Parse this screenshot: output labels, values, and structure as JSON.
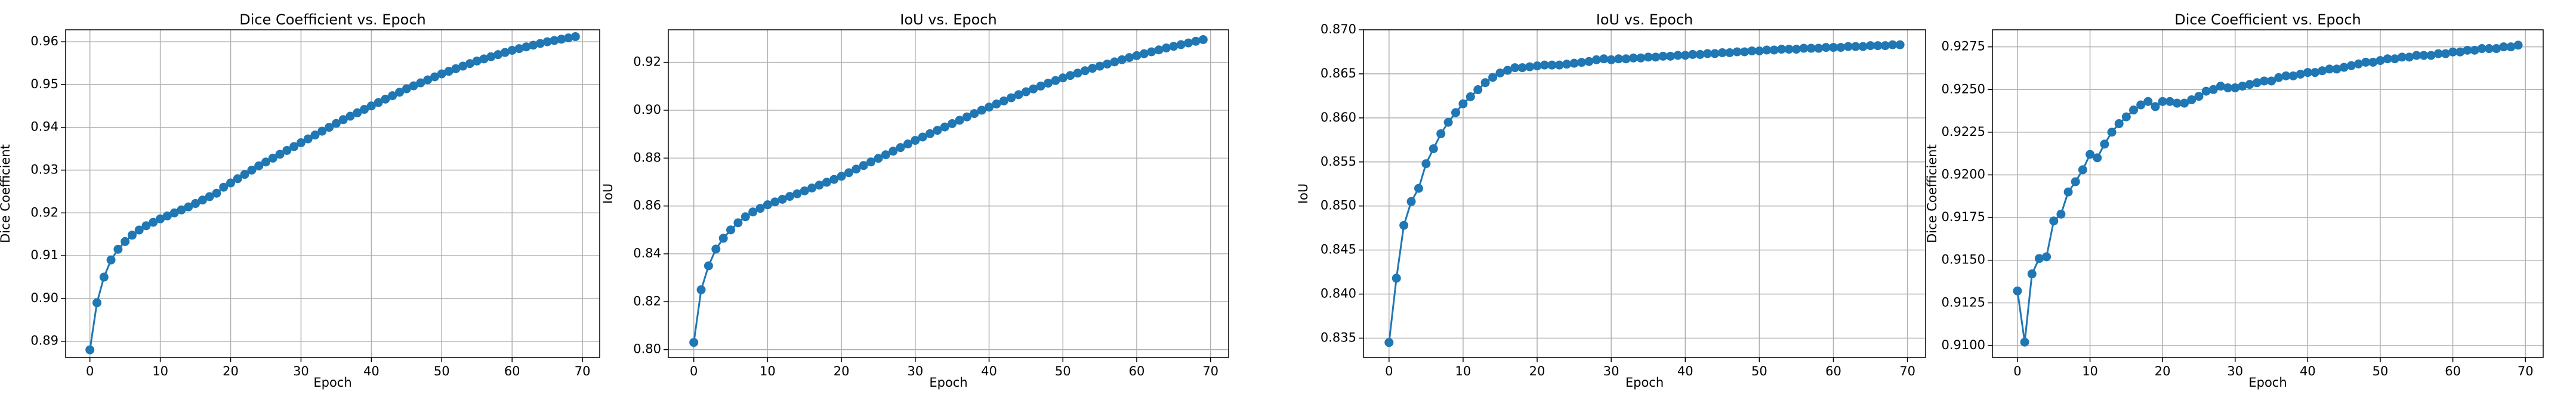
{
  "chart_data": [
    {
      "type": "line",
      "title": "Dice Coefficient vs. Epoch",
      "xlabel": "Epoch",
      "ylabel": "Dice Coefficient",
      "grid": true,
      "x": [
        0,
        1,
        2,
        3,
        4,
        5,
        6,
        7,
        8,
        9,
        10,
        11,
        12,
        13,
        14,
        15,
        16,
        17,
        18,
        19,
        20,
        21,
        22,
        23,
        24,
        25,
        26,
        27,
        28,
        29,
        30,
        31,
        32,
        33,
        34,
        35,
        36,
        37,
        38,
        39,
        40,
        41,
        42,
        43,
        44,
        45,
        46,
        47,
        48,
        49,
        50,
        51,
        52,
        53,
        54,
        55,
        56,
        57,
        58,
        59,
        60,
        61,
        62,
        63,
        64,
        65,
        66,
        67,
        68,
        69
      ],
      "series": [
        {
          "color": "#1f77b4",
          "values": [
            0.888,
            0.899,
            0.905,
            0.909,
            0.9115,
            0.9133,
            0.9148,
            0.916,
            0.917,
            0.9178,
            0.9186,
            0.9193,
            0.92,
            0.9207,
            0.9214,
            0.9222,
            0.923,
            0.9238,
            0.9246,
            0.926,
            0.927,
            0.928,
            0.929,
            0.93,
            0.931,
            0.9319,
            0.9328,
            0.9337,
            0.9346,
            0.9355,
            0.9364,
            0.9373,
            0.9382,
            0.9391,
            0.94,
            0.9409,
            0.9418,
            0.9426,
            0.9434,
            0.9442,
            0.945,
            0.9458,
            0.9466,
            0.9474,
            0.9482,
            0.949,
            0.9497,
            0.9504,
            0.9511,
            0.9518,
            0.9525,
            0.9531,
            0.9537,
            0.9543,
            0.9549,
            0.9555,
            0.956,
            0.9565,
            0.957,
            0.9575,
            0.958,
            0.9584,
            0.9588,
            0.9592,
            0.9596,
            0.96,
            0.9603,
            0.9606,
            0.9609,
            0.9612
          ]
        }
      ],
      "xlim": [
        -3.45,
        72.45
      ],
      "xticks": [
        0,
        10,
        20,
        30,
        40,
        50,
        60,
        70
      ],
      "ylim": [
        0.8862,
        0.9628
      ],
      "yticks": [
        0.89,
        {
          "value": 0.9,
          "label": "0.90"
        },
        0.91,
        0.92,
        0.93,
        0.94,
        0.95,
        0.96
      ]
    },
    {
      "type": "line",
      "title": "IoU vs. Epoch",
      "xlabel": "Epoch",
      "ylabel": "IoU",
      "grid": true,
      "x": [
        0,
        1,
        2,
        3,
        4,
        5,
        6,
        7,
        8,
        9,
        10,
        11,
        12,
        13,
        14,
        15,
        16,
        17,
        18,
        19,
        20,
        21,
        22,
        23,
        24,
        25,
        26,
        27,
        28,
        29,
        30,
        31,
        32,
        33,
        34,
        35,
        36,
        37,
        38,
        39,
        40,
        41,
        42,
        43,
        44,
        45,
        46,
        47,
        48,
        49,
        50,
        51,
        52,
        53,
        54,
        55,
        56,
        57,
        58,
        59,
        60,
        61,
        62,
        63,
        64,
        65,
        66,
        67,
        68,
        69
      ],
      "series": [
        {
          "color": "#1f77b4",
          "values": [
            0.803,
            0.825,
            0.835,
            0.842,
            0.8465,
            0.85,
            0.853,
            0.8555,
            0.8575,
            0.859,
            0.8605,
            0.8617,
            0.8628,
            0.864,
            0.8651,
            0.8663,
            0.8675,
            0.8687,
            0.8699,
            0.8711,
            0.8724,
            0.8739,
            0.8754,
            0.8769,
            0.8784,
            0.8799,
            0.8814,
            0.8829,
            0.8844,
            0.8859,
            0.8874,
            0.8888,
            0.8902,
            0.8916,
            0.893,
            0.8944,
            0.8958,
            0.8972,
            0.8986,
            0.9,
            0.9013,
            0.9026,
            0.9039,
            0.9052,
            0.9065,
            0.9077,
            0.9089,
            0.9101,
            0.9113,
            0.9124,
            0.9135,
            0.9145,
            0.9155,
            0.9165,
            0.9175,
            0.9184,
            0.9193,
            0.9202,
            0.9211,
            0.922,
            0.9228,
            0.9236,
            0.9244,
            0.9252,
            0.926,
            0.9267,
            0.9274,
            0.9281,
            0.9288,
            0.9295
          ]
        }
      ],
      "xlim": [
        -3.45,
        72.45
      ],
      "xticks": [
        0,
        10,
        20,
        30,
        40,
        50,
        60,
        70
      ],
      "ylim": [
        0.7967,
        0.9336
      ],
      "yticks": [
        {
          "value": 0.8,
          "label": "0.80"
        },
        0.82,
        0.84,
        0.86,
        0.88,
        {
          "value": 0.9,
          "label": "0.90"
        },
        0.92
      ]
    },
    {
      "type": "line",
      "title": "IoU vs. Epoch",
      "xlabel": "Epoch",
      "ylabel": "IoU",
      "grid": true,
      "x": [
        0,
        1,
        2,
        3,
        4,
        5,
        6,
        7,
        8,
        9,
        10,
        11,
        12,
        13,
        14,
        15,
        16,
        17,
        18,
        19,
        20,
        21,
        22,
        23,
        24,
        25,
        26,
        27,
        28,
        29,
        30,
        31,
        32,
        33,
        34,
        35,
        36,
        37,
        38,
        39,
        40,
        41,
        42,
        43,
        44,
        45,
        46,
        47,
        48,
        49,
        50,
        51,
        52,
        53,
        54,
        55,
        56,
        57,
        58,
        59,
        60,
        61,
        62,
        63,
        64,
        65,
        66,
        67,
        68,
        69
      ],
      "series": [
        {
          "color": "#1f77b4",
          "values": [
            0.8345,
            0.8418,
            0.8478,
            0.8505,
            0.852,
            0.8548,
            0.8565,
            0.8582,
            0.8595,
            0.8606,
            0.8616,
            0.8624,
            0.8632,
            0.864,
            0.8646,
            0.8651,
            0.8654,
            0.8657,
            0.8657,
            0.8658,
            0.8659,
            0.866,
            0.866,
            0.866,
            0.8661,
            0.8662,
            0.8663,
            0.8664,
            0.8666,
            0.8667,
            0.8666,
            0.8667,
            0.8667,
            0.8668,
            0.8668,
            0.8669,
            0.8669,
            0.867,
            0.867,
            0.8671,
            0.8671,
            0.8672,
            0.8672,
            0.8673,
            0.8673,
            0.8674,
            0.8674,
            0.8675,
            0.8675,
            0.8676,
            0.8676,
            0.8677,
            0.8677,
            0.8678,
            0.8678,
            0.8678,
            0.8679,
            0.8679,
            0.8679,
            0.868,
            0.868,
            0.868,
            0.8681,
            0.8681,
            0.8681,
            0.8682,
            0.8682,
            0.8682,
            0.8683,
            0.8683
          ]
        }
      ],
      "xlim": [
        -3.45,
        72.45
      ],
      "xticks": [
        0,
        10,
        20,
        30,
        40,
        50,
        60,
        70
      ],
      "ylim": [
        0.8328,
        0.87
      ],
      "yticks": [
        0.835,
        {
          "value": 0.84,
          "label": "0.840"
        },
        0.845,
        {
          "value": 0.85,
          "label": "0.850"
        },
        0.855,
        {
          "value": 0.86,
          "label": "0.860"
        },
        0.865,
        {
          "value": 0.87,
          "label": "0.870"
        }
      ]
    },
    {
      "type": "line",
      "title": "Dice Coefficient vs. Epoch",
      "xlabel": "Epoch",
      "ylabel": "Dice Coefficient",
      "grid": true,
      "x": [
        0,
        1,
        2,
        3,
        4,
        5,
        6,
        7,
        8,
        9,
        10,
        11,
        12,
        13,
        14,
        15,
        16,
        17,
        18,
        19,
        20,
        21,
        22,
        23,
        24,
        25,
        26,
        27,
        28,
        29,
        30,
        31,
        32,
        33,
        34,
        35,
        36,
        37,
        38,
        39,
        40,
        41,
        42,
        43,
        44,
        45,
        46,
        47,
        48,
        49,
        50,
        51,
        52,
        53,
        54,
        55,
        56,
        57,
        58,
        59,
        60,
        61,
        62,
        63,
        64,
        65,
        66,
        67,
        68,
        69
      ],
      "series": [
        {
          "color": "#1f77b4",
          "values": [
            0.9132,
            0.9102,
            0.9142,
            0.9151,
            0.9152,
            0.9173,
            0.9177,
            0.919,
            0.9196,
            0.9203,
            0.9212,
            0.921,
            0.9218,
            0.9225,
            0.923,
            0.9234,
            0.9238,
            0.9241,
            0.9243,
            0.924,
            0.9243,
            0.9243,
            0.9242,
            0.9242,
            0.9244,
            0.9246,
            0.9249,
            0.925,
            0.9252,
            0.9251,
            0.9251,
            0.9252,
            0.9253,
            0.9254,
            0.9255,
            0.9255,
            0.9257,
            0.9258,
            0.9258,
            0.9259,
            0.926,
            0.926,
            0.9261,
            0.9262,
            0.9262,
            0.9263,
            0.9264,
            0.9265,
            0.9266,
            0.9266,
            0.9267,
            0.9268,
            0.9268,
            0.9269,
            0.9269,
            0.927,
            0.927,
            0.927,
            0.9271,
            0.9271,
            0.9272,
            0.9272,
            0.9273,
            0.9273,
            0.9274,
            0.9274,
            0.9274,
            0.9275,
            0.9275,
            0.9276
          ]
        }
      ],
      "xlim": [
        -3.45,
        72.45
      ],
      "xticks": [
        0,
        10,
        20,
        30,
        40,
        50,
        60,
        70
      ],
      "ylim": [
        0.9093,
        0.9285
      ],
      "yticks": [
        {
          "value": 0.91,
          "label": "0.9100"
        },
        {
          "value": 0.9125,
          "label": "0.9125"
        },
        {
          "value": 0.915,
          "label": "0.9150"
        },
        {
          "value": 0.9175,
          "label": "0.9175"
        },
        {
          "value": 0.92,
          "label": "0.9200"
        },
        {
          "value": 0.9225,
          "label": "0.9225"
        },
        {
          "value": 0.925,
          "label": "0.9250"
        },
        {
          "value": 0.9275,
          "label": "0.9275"
        }
      ]
    }
  ]
}
